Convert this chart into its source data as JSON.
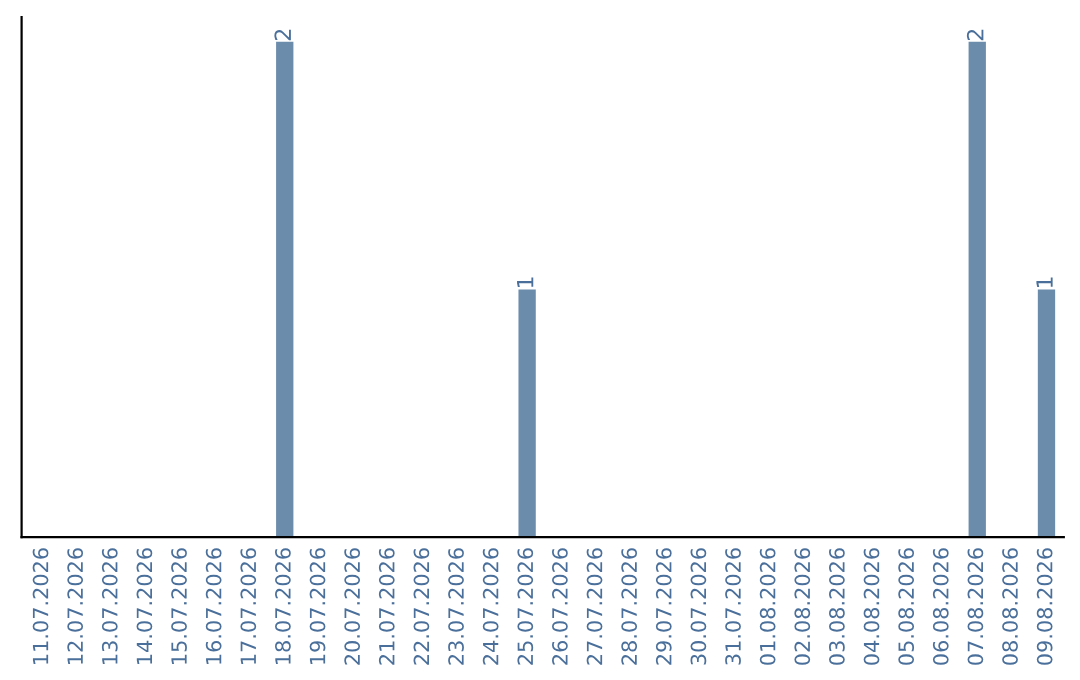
{
  "chart_data": {
    "type": "bar",
    "categories": [
      "11.07.2026",
      "12.07.2026",
      "13.07.2026",
      "14.07.2026",
      "15.07.2026",
      "16.07.2026",
      "17.07.2026",
      "18.07.2026",
      "19.07.2026",
      "20.07.2026",
      "21.07.2026",
      "22.07.2026",
      "23.07.2026",
      "24.07.2026",
      "25.07.2026",
      "26.07.2026",
      "27.07.2026",
      "28.07.2026",
      "29.07.2026",
      "30.07.2026",
      "31.07.2026",
      "01.08.2026",
      "02.08.2026",
      "03.08.2026",
      "04.08.2026",
      "05.08.2026",
      "06.08.2026",
      "07.08.2026",
      "08.08.2026",
      "09.08.2026"
    ],
    "values": [
      0,
      0,
      0,
      0,
      0,
      0,
      0,
      2,
      0,
      0,
      0,
      0,
      0,
      0,
      1,
      0,
      0,
      0,
      0,
      0,
      0,
      0,
      0,
      0,
      0,
      0,
      0,
      2,
      0,
      1
    ],
    "value_labels": [
      null,
      null,
      null,
      null,
      null,
      null,
      null,
      "2",
      null,
      null,
      null,
      null,
      null,
      null,
      "1",
      null,
      null,
      null,
      null,
      null,
      null,
      null,
      null,
      null,
      null,
      null,
      null,
      "2",
      null,
      "1"
    ],
    "color": "#6b8cab",
    "grid": false,
    "legend": false
  }
}
